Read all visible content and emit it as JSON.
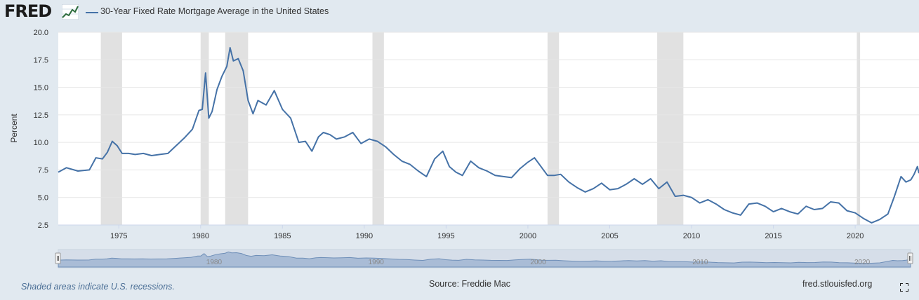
{
  "brand": {
    "logo_text": "FRED",
    "logo_icon": "line-graph-icon"
  },
  "legend": {
    "label": "30-Year Fixed Rate Mortgage Average in the United States",
    "color": "#4572a7"
  },
  "footer": {
    "recession_note": "Shaded areas indicate U.S. recessions.",
    "source": "Source: Freddie Mac",
    "url": "fred.stlouisfed.org",
    "fullscreen_icon": "fullscreen-icon"
  },
  "colors": {
    "line": "#4572a7",
    "recession": "#e1e1e1",
    "navigator_fill": "#a9bcd6",
    "background": "#e1e9f0"
  },
  "chart_data": {
    "type": "line",
    "title": "",
    "xlabel": "",
    "ylabel": "Percent",
    "xlim": [
      1971.3,
      2023.9
    ],
    "ylim": [
      2.5,
      20.0
    ],
    "x_ticks": [
      1975,
      1980,
      1985,
      1990,
      1995,
      2000,
      2005,
      2010,
      2015,
      2020
    ],
    "x_tick_labels": [
      "1975",
      "1980",
      "1985",
      "1990",
      "1995",
      "2000",
      "2005",
      "2010",
      "2015",
      "2020"
    ],
    "y_ticks": [
      2.5,
      5.0,
      7.5,
      10.0,
      12.5,
      15.0,
      17.5,
      20.0
    ],
    "y_tick_labels": [
      "2.5",
      "5.0",
      "7.5",
      "10.0",
      "12.5",
      "15.0",
      "17.5",
      "20.0"
    ],
    "recessions": [
      [
        1973.9,
        1975.2
      ],
      [
        1980.0,
        1980.5
      ],
      [
        1981.5,
        1982.9
      ],
      [
        1990.5,
        1991.2
      ],
      [
        2001.2,
        2001.9
      ],
      [
        2007.9,
        2009.5
      ],
      [
        2020.1,
        2020.3
      ]
    ],
    "grid": true,
    "legend_position": "top-left",
    "navigator_labels": [
      {
        "x": 1980,
        "label": "1980"
      },
      {
        "x": 1990,
        "label": "1990"
      },
      {
        "x": 2000,
        "label": "2000"
      },
      {
        "x": 2010,
        "label": "2010"
      },
      {
        "x": 2020,
        "label": "2020"
      }
    ],
    "series": [
      {
        "name": "30-Year Fixed Rate Mortgage Average in the United States",
        "x": [
          1971.3,
          1971.8,
          1972.5,
          1973.2,
          1973.6,
          1974.0,
          1974.3,
          1974.6,
          1974.9,
          1975.2,
          1975.6,
          1976.0,
          1976.5,
          1977.0,
          1977.5,
          1978.0,
          1978.5,
          1979.0,
          1979.5,
          1979.9,
          1980.1,
          1980.3,
          1980.5,
          1980.7,
          1981.0,
          1981.3,
          1981.6,
          1981.8,
          1982.0,
          1982.3,
          1982.6,
          1982.9,
          1983.2,
          1983.5,
          1984.0,
          1984.5,
          1985.0,
          1985.5,
          1986.0,
          1986.4,
          1986.8,
          1987.2,
          1987.5,
          1987.9,
          1988.3,
          1988.8,
          1989.3,
          1989.8,
          1990.3,
          1990.8,
          1991.3,
          1991.8,
          1992.3,
          1992.8,
          1993.3,
          1993.8,
          1994.3,
          1994.8,
          1995.2,
          1995.6,
          1996.0,
          1996.5,
          1997.0,
          1997.5,
          1998.0,
          1998.5,
          1999.0,
          1999.5,
          2000.0,
          2000.4,
          2000.8,
          2001.2,
          2001.6,
          2002.0,
          2002.5,
          2003.0,
          2003.5,
          2004.0,
          2004.5,
          2005.0,
          2005.5,
          2006.0,
          2006.5,
          2007.0,
          2007.5,
          2008.0,
          2008.5,
          2009.0,
          2009.5,
          2010.0,
          2010.5,
          2011.0,
          2011.5,
          2012.0,
          2012.5,
          2013.0,
          2013.5,
          2014.0,
          2014.5,
          2015.0,
          2015.5,
          2016.0,
          2016.5,
          2017.0,
          2017.5,
          2018.0,
          2018.5,
          2019.0,
          2019.5,
          2020.0,
          2020.5,
          2021.0,
          2021.5,
          2022.0,
          2022.4,
          2022.8,
          2023.1,
          2023.4,
          2023.6,
          2023.8,
          2023.9
        ],
        "values": [
          7.3,
          7.7,
          7.4,
          7.5,
          8.6,
          8.5,
          9.1,
          10.1,
          9.7,
          9.0,
          9.0,
          8.9,
          9.0,
          8.8,
          8.9,
          9.0,
          9.7,
          10.4,
          11.2,
          12.9,
          13.0,
          16.3,
          12.2,
          12.8,
          14.8,
          16.0,
          16.9,
          18.6,
          17.4,
          17.6,
          16.5,
          13.8,
          12.6,
          13.8,
          13.4,
          14.7,
          13.0,
          12.2,
          10.0,
          10.1,
          9.2,
          10.5,
          10.9,
          10.7,
          10.3,
          10.5,
          10.9,
          9.9,
          10.3,
          10.1,
          9.6,
          8.9,
          8.3,
          8.0,
          7.4,
          6.9,
          8.5,
          9.2,
          7.8,
          7.3,
          7.0,
          8.3,
          7.7,
          7.4,
          7.0,
          6.9,
          6.8,
          7.6,
          8.2,
          8.6,
          7.8,
          7.0,
          7.0,
          7.1,
          6.4,
          5.9,
          5.5,
          5.8,
          6.3,
          5.7,
          5.8,
          6.2,
          6.7,
          6.2,
          6.7,
          5.8,
          6.4,
          5.1,
          5.2,
          5.0,
          4.5,
          4.8,
          4.4,
          3.9,
          3.6,
          3.4,
          4.4,
          4.5,
          4.2,
          3.7,
          4.0,
          3.7,
          3.5,
          4.2,
          3.9,
          4.0,
          4.6,
          4.5,
          3.8,
          3.6,
          3.1,
          2.7,
          3.0,
          3.5,
          5.1,
          6.9,
          6.4,
          6.6,
          7.1,
          7.8,
          7.2
        ]
      }
    ]
  }
}
